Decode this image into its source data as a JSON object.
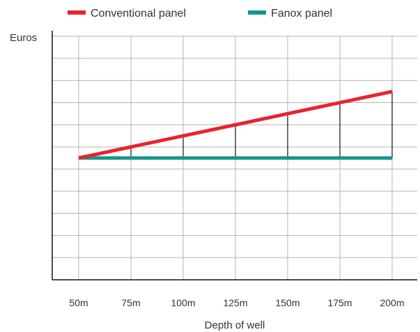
{
  "chart_data": {
    "type": "line",
    "title": "",
    "xlabel": "Depth of well",
    "ylabel": "Euros",
    "categories": [
      "50m",
      "75m",
      "100m",
      "125m",
      "150m",
      "175m",
      "200m"
    ],
    "ylim": [
      0,
      11
    ],
    "grid": true,
    "legend_position": "top",
    "series": [
      {
        "name": "Conventional panel",
        "color": "#e8242f",
        "values": [
          5.5,
          6.0,
          6.5,
          7.0,
          7.5,
          8.0,
          8.5
        ]
      },
      {
        "name": "Fanox panel",
        "color": "#12988a",
        "values": [
          5.5,
          5.5,
          5.5,
          5.5,
          5.5,
          5.5,
          5.5
        ]
      }
    ],
    "difference_lines": true
  }
}
